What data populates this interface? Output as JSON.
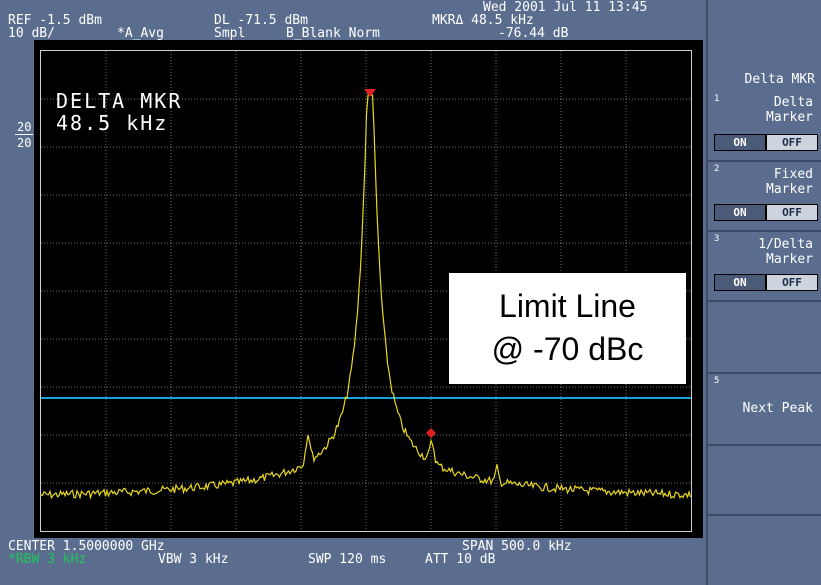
{
  "header": {
    "datetime": "Wed 2001 Jul 11 13:45",
    "ref": "REF -1.5 dBm",
    "scale_div": "10 dB/",
    "avg": "*A_Avg",
    "dl": "DL -71.5 dBm",
    "smpl": "Smpl",
    "blank": "B_Blank Norm",
    "mkr_label": "MKRΔ 48.5 kHz",
    "mkr_value": "-76.44 dB"
  },
  "left_scale": {
    "top": "20",
    "bottom": "20"
  },
  "display": {
    "marker_title": "DELTA MKR",
    "marker_value": "48.5 kHz",
    "annotation_line1": "Limit Line",
    "annotation_line2": "@ -70 dBc",
    "trace_color": "#e8d820",
    "limit_color": "#1aa0d8",
    "marker_color": "#e02020"
  },
  "footer": {
    "center": "CENTER 1.5000000 GHz",
    "span": "SPAN 500.0 kHz",
    "rbw": "*RBW 3 kHz",
    "vbw": "VBW 3 kHz",
    "swp": "SWP 120 ms",
    "att": "ATT 10 dB"
  },
  "softkeys": {
    "menu_title": "Delta MKR",
    "key1": {
      "num": "1",
      "line1": "Delta",
      "line2": "Marker",
      "on": "ON",
      "off": "OFF"
    },
    "key2": {
      "num": "2",
      "line1": "Fixed",
      "line2": "Marker",
      "on": "ON",
      "off": "OFF"
    },
    "key3": {
      "num": "3",
      "line1": "1/Delta",
      "line2": "Marker",
      "on": "ON",
      "off": "OFF"
    },
    "key5": {
      "num": "5",
      "line1": "Next Peak"
    }
  }
}
